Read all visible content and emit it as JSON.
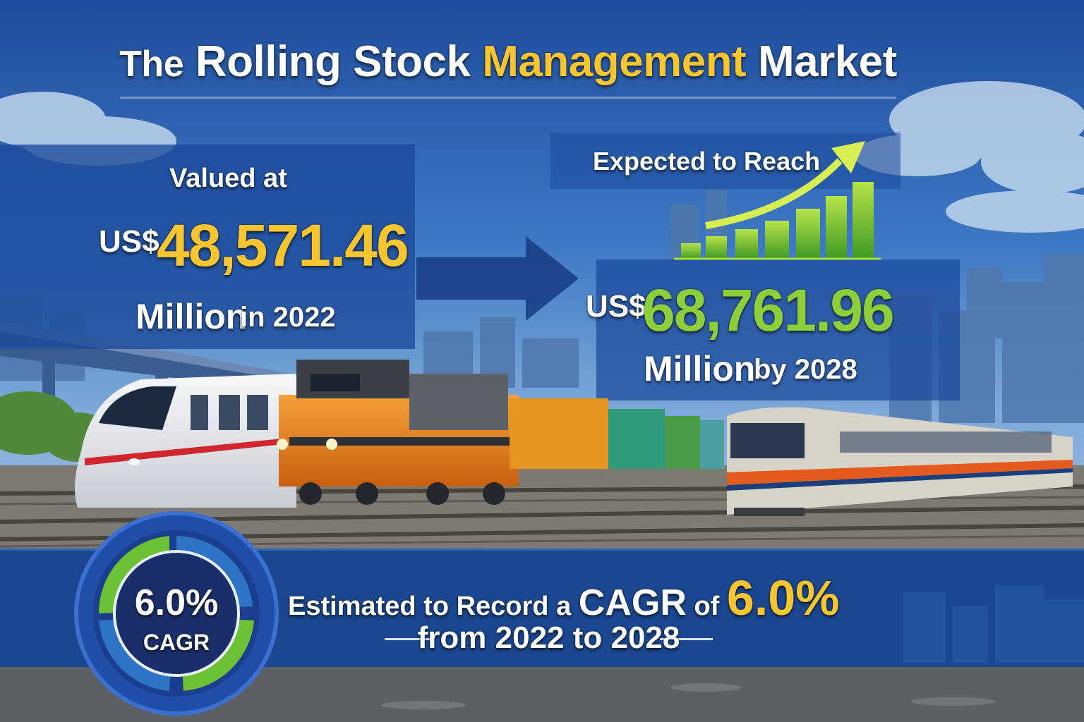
{
  "title": {
    "word1": "The",
    "word2": "Rolling Stock",
    "word3": "Management",
    "word4": "Market"
  },
  "left_panel": {
    "label": "Valued at",
    "currency": "US$",
    "value": "48,571.46",
    "unit": "Million",
    "suffix": "in 2022"
  },
  "right_panel": {
    "label": "Expected to Reach",
    "currency": "US$",
    "value": "68,761.96",
    "unit": "Million",
    "suffix": "by 2028"
  },
  "cagr_badge": {
    "value": "6.0%",
    "label": "CAGR"
  },
  "cagr_caption": {
    "part1": "Estimated to Record a",
    "part2": "CAGR",
    "part3": "of",
    "value": "6.0%",
    "line2": "from 2022 to 2028"
  },
  "colors": {
    "background_blue": "#1a4690",
    "accent_yellow": "#f7c530",
    "accent_green": "#8ccf3a",
    "text_white": "#ffffff"
  }
}
